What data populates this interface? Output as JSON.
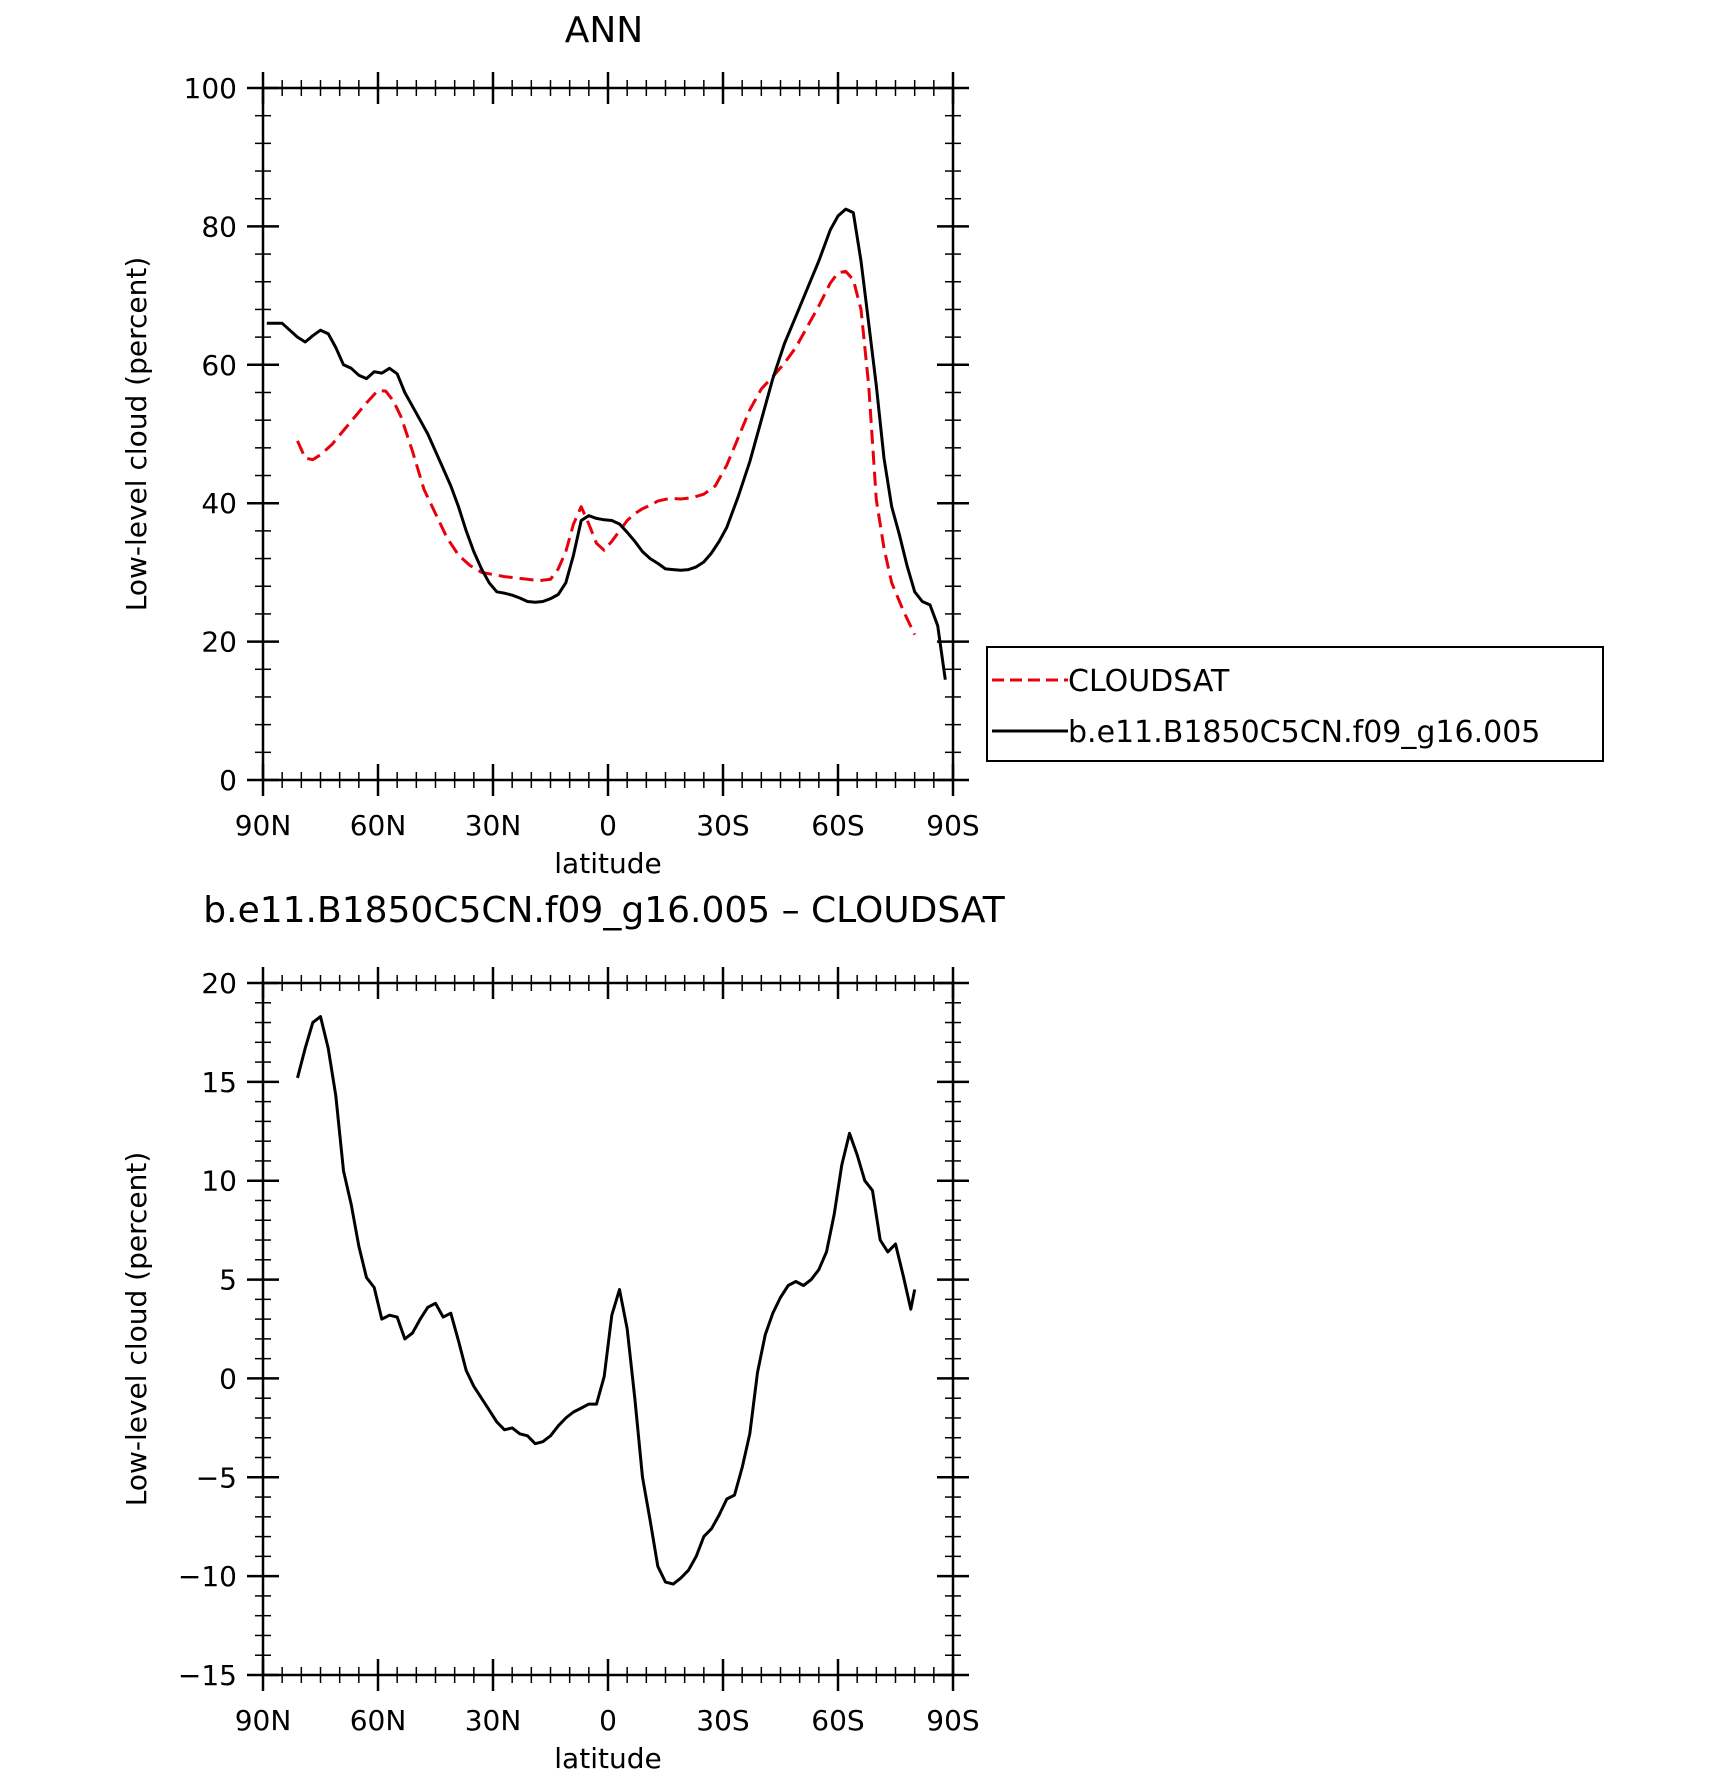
{
  "chart_data": [
    {
      "type": "line",
      "title": "ANN",
      "xlabel": "latitude",
      "ylabel": "Low-level cloud (percent)",
      "xlim": [
        90,
        -90
      ],
      "ylim": [
        0,
        100
      ],
      "x_ticks": [
        {
          "value": 90,
          "label": "90N"
        },
        {
          "value": 60,
          "label": "60N"
        },
        {
          "value": 30,
          "label": "30N"
        },
        {
          "value": 0,
          "label": "0"
        },
        {
          "value": -30,
          "label": "30S"
        },
        {
          "value": -60,
          "label": "60S"
        },
        {
          "value": -90,
          "label": "90S"
        }
      ],
      "y_ticks": [
        {
          "value": 0,
          "label": "0"
        },
        {
          "value": 20,
          "label": "20"
        },
        {
          "value": 40,
          "label": "40"
        },
        {
          "value": 60,
          "label": "60"
        },
        {
          "value": 80,
          "label": "80"
        },
        {
          "value": 100,
          "label": "100"
        }
      ],
      "legend": {
        "placement": "outside-right"
      },
      "series": [
        {
          "name": "CLOUDSAT",
          "color": "#e8000b",
          "dash": true,
          "x": [
            81,
            79,
            77,
            75,
            72,
            69,
            66,
            63,
            60,
            58,
            56,
            54,
            51,
            48,
            45,
            42,
            39,
            36,
            33,
            30,
            27,
            24,
            21,
            18,
            15,
            13,
            11,
            9,
            7,
            5,
            3,
            1,
            -1,
            -3,
            -5,
            -7,
            -9,
            -11,
            -13,
            -16,
            -19,
            -22,
            -25,
            -28,
            -31,
            -34,
            -37,
            -40,
            -43,
            -46,
            -49,
            -52,
            -55,
            -58,
            -60,
            -62,
            -64,
            -66,
            -68,
            -70,
            -72,
            -74,
            -77,
            -80
          ],
          "y": [
            49,
            46.5,
            46.3,
            47,
            48.5,
            50.5,
            52.5,
            54.5,
            56.3,
            56.2,
            54.8,
            52.5,
            47.5,
            42,
            38.5,
            35,
            32.5,
            31,
            30,
            29.7,
            29.4,
            29.2,
            29,
            28.8,
            29,
            30.5,
            33,
            37,
            39.5,
            37,
            34.2,
            33.2,
            34.5,
            36,
            37.5,
            38.5,
            39.2,
            39.7,
            40.3,
            40.7,
            40.6,
            40.8,
            41.3,
            42.5,
            45.5,
            49.5,
            53.5,
            56.5,
            58.3,
            60.2,
            62.5,
            65.5,
            68.5,
            71.8,
            73.3,
            73.5,
            72.3,
            68,
            57,
            40.5,
            33.5,
            28.5,
            24.5,
            21
          ]
        },
        {
          "name": "b.e11.B1850C5CN.f09_g16.005",
          "color": "#000000",
          "dash": false,
          "x": [
            89,
            87,
            85,
            83,
            81,
            79,
            77,
            75,
            73,
            71,
            69,
            67,
            65,
            63,
            61,
            59,
            57,
            55,
            53,
            51,
            49,
            47,
            45,
            43,
            41,
            39,
            37,
            35,
            33,
            31,
            29,
            27,
            25,
            23,
            21,
            19,
            17,
            15,
            13,
            11,
            9,
            7,
            5,
            3,
            1,
            -1,
            -3,
            -5,
            -7,
            -9,
            -11,
            -13,
            -15,
            -17,
            -19,
            -21,
            -23,
            -25,
            -27,
            -29,
            -31,
            -34,
            -37,
            -40,
            -43,
            -46,
            -49,
            -52,
            -55,
            -58,
            -60,
            -62,
            -64,
            -66,
            -68,
            -70,
            -72,
            -74,
            -76,
            -78,
            -80,
            -82,
            -84,
            -86,
            -88
          ],
          "y": [
            66,
            66,
            66,
            65,
            64,
            63.3,
            64.2,
            65,
            64.5,
            62.5,
            60,
            59.5,
            58.5,
            58,
            59,
            58.8,
            59.5,
            58.7,
            56,
            54,
            52,
            50,
            47.5,
            45,
            42.5,
            39.5,
            36,
            33,
            30.5,
            28.5,
            27.2,
            27,
            26.7,
            26.3,
            25.8,
            25.7,
            25.8,
            26.2,
            26.8,
            28.5,
            32.5,
            37.5,
            38.2,
            37.8,
            37.6,
            37.5,
            37,
            35.8,
            34.5,
            33,
            32,
            31.3,
            30.5,
            30.4,
            30.3,
            30.4,
            30.8,
            31.5,
            32.8,
            34.5,
            36.5,
            41,
            46,
            52,
            58,
            63,
            67,
            71,
            75,
            79.5,
            81.5,
            82.5,
            82,
            75,
            66,
            57,
            46.5,
            39.5,
            35.5,
            31,
            27.2,
            25.8,
            25.3,
            22.3,
            14.5
          ]
        }
      ]
    },
    {
      "type": "line",
      "title": "b.e11.B1850C5CN.f09_g16.005 – CLOUDSAT",
      "xlabel": "latitude",
      "ylabel": "Low-level cloud (percent)",
      "xlim": [
        90,
        -90
      ],
      "ylim": [
        -15,
        20
      ],
      "x_ticks": [
        {
          "value": 90,
          "label": "90N"
        },
        {
          "value": 60,
          "label": "60N"
        },
        {
          "value": 30,
          "label": "30N"
        },
        {
          "value": 0,
          "label": "0"
        },
        {
          "value": -30,
          "label": "30S"
        },
        {
          "value": -60,
          "label": "60S"
        },
        {
          "value": -90,
          "label": "90S"
        }
      ],
      "y_ticks": [
        {
          "value": -15,
          "label": "−15"
        },
        {
          "value": -10,
          "label": "−10"
        },
        {
          "value": -5,
          "label": "−5"
        },
        {
          "value": 0,
          "label": "0"
        },
        {
          "value": 5,
          "label": "5"
        },
        {
          "value": 10,
          "label": "10"
        },
        {
          "value": 15,
          "label": "15"
        },
        {
          "value": 20,
          "label": "20"
        }
      ],
      "series": [
        {
          "color": "#000000",
          "dash": false,
          "x": [
            81,
            79,
            77,
            75,
            73,
            71,
            69,
            67,
            65,
            63,
            61,
            59,
            57,
            55,
            53,
            51,
            49,
            47,
            45,
            43,
            41,
            39,
            37,
            35,
            33,
            31,
            29,
            27,
            25,
            23,
            21,
            19,
            17,
            15,
            13,
            11,
            9,
            7,
            5,
            3,
            1,
            -1,
            -3,
            -5,
            -7,
            -9,
            -11,
            -13,
            -15,
            -17,
            -19,
            -21,
            -23,
            -25,
            -27,
            -29,
            -31,
            -33,
            -35,
            -37,
            -39,
            -41,
            -43,
            -45,
            -47,
            -49,
            -51,
            -53,
            -55,
            -57,
            -59,
            -61,
            -63,
            -65,
            -67,
            -69,
            -71,
            -73,
            -75,
            -77,
            -79,
            -80
          ],
          "y": [
            15.2,
            16.7,
            18,
            18.3,
            16.7,
            14.3,
            10.5,
            8.8,
            6.7,
            5.1,
            4.6,
            3.0,
            3.2,
            3.1,
            2.0,
            2.3,
            3.0,
            3.6,
            3.8,
            3.1,
            3.3,
            1.9,
            0.4,
            -0.4,
            -1.0,
            -1.6,
            -2.2,
            -2.6,
            -2.5,
            -2.8,
            -2.9,
            -3.3,
            -3.2,
            -2.9,
            -2.4,
            -2.0,
            -1.7,
            -1.5,
            -1.3,
            -1.3,
            0.1,
            3.2,
            4.5,
            2.5,
            -1.0,
            -5.0,
            -7.2,
            -9.5,
            -10.3,
            -10.4,
            -10.1,
            -9.7,
            -9.0,
            -8.0,
            -7.6,
            -6.9,
            -6.1,
            -5.9,
            -4.5,
            -2.8,
            0.3,
            2.2,
            3.3,
            4.1,
            4.7,
            4.9,
            4.7,
            5.0,
            5.5,
            6.4,
            8.3,
            10.8,
            12.4,
            11.3,
            10.0,
            9.5,
            7.0,
            6.4,
            6.8,
            5.2,
            3.5,
            4.5
          ]
        }
      ]
    }
  ]
}
